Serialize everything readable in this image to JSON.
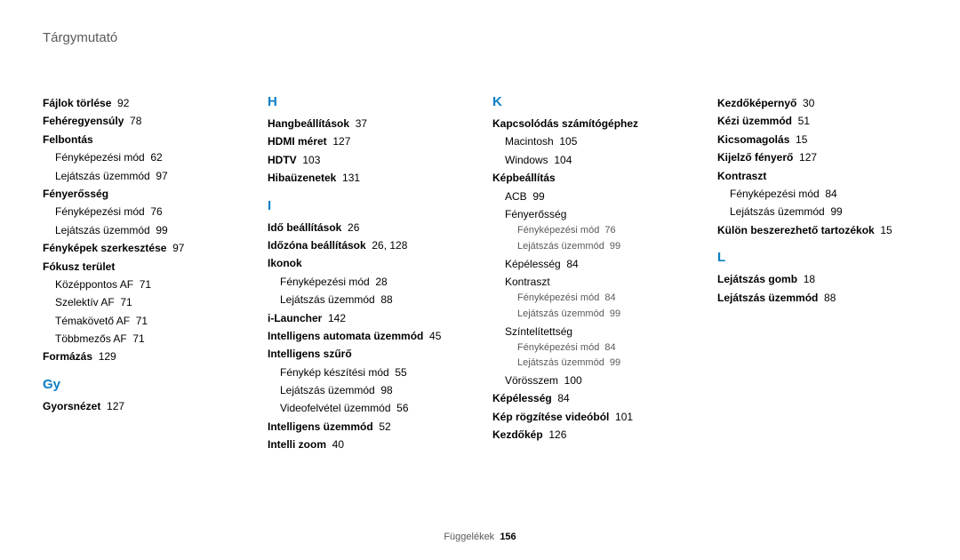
{
  "page": {
    "title": "Tárgymutató",
    "footer_label": "Függelékek",
    "footer_page": "156"
  },
  "columns": [
    {
      "blocks": [
        {
          "type": "bold",
          "text": "Fájlok törlése",
          "page": "92"
        },
        {
          "type": "bold",
          "text": "Fehéregyensúly",
          "page": "78"
        },
        {
          "type": "bold",
          "text": "Felbontás"
        },
        {
          "type": "sub1",
          "text": "Fényképezési mód",
          "page": "62"
        },
        {
          "type": "sub1",
          "text": "Lejátszás üzemmód",
          "page": "97"
        },
        {
          "type": "bold",
          "text": "Fényerősség"
        },
        {
          "type": "sub1",
          "text": "Fényképezési mód",
          "page": "76"
        },
        {
          "type": "sub1",
          "text": "Lejátszás üzemmód",
          "page": "99"
        },
        {
          "type": "bold",
          "text": "Fényképek szerkesztése",
          "page": "97"
        },
        {
          "type": "bold",
          "text": "Fókusz terület"
        },
        {
          "type": "sub1",
          "text": "Középpontos AF",
          "page": "71"
        },
        {
          "type": "sub1",
          "text": "Szelektív AF",
          "page": "71"
        },
        {
          "type": "sub1",
          "text": "Témakövető AF",
          "page": "71"
        },
        {
          "type": "sub1",
          "text": "Többmezős AF",
          "page": "71"
        },
        {
          "type": "bold",
          "text": "Formázás",
          "page": "129"
        },
        {
          "type": "letter",
          "text": "Gy"
        },
        {
          "type": "bold",
          "text": "Gyorsnézet",
          "page": "127"
        }
      ]
    },
    {
      "blocks": [
        {
          "type": "letter",
          "text": "H",
          "first": true
        },
        {
          "type": "bold",
          "text": "Hangbeállítások",
          "page": "37"
        },
        {
          "type": "bold",
          "text": "HDMI méret",
          "page": "127"
        },
        {
          "type": "bold",
          "text": "HDTV",
          "page": "103"
        },
        {
          "type": "bold",
          "text": "Hibaüzenetek",
          "page": "131"
        },
        {
          "type": "letter",
          "text": "I"
        },
        {
          "type": "bold",
          "text": "Idő beállítások",
          "page": "26"
        },
        {
          "type": "bold",
          "text": "Időzóna beállítások",
          "page": "26, 128"
        },
        {
          "type": "bold",
          "text": "Ikonok"
        },
        {
          "type": "sub1",
          "text": "Fényképezési mód",
          "page": "28"
        },
        {
          "type": "sub1",
          "text": "Lejátszás üzemmód",
          "page": "88"
        },
        {
          "type": "bold",
          "text": "i-Launcher",
          "page": "142"
        },
        {
          "type": "bold",
          "text": "Intelligens automata üzemmód",
          "page": "45"
        },
        {
          "type": "bold",
          "text": "Intelligens szűrő"
        },
        {
          "type": "sub1",
          "text": "Fénykép készítési mód",
          "page": "55"
        },
        {
          "type": "sub1",
          "text": "Lejátszás üzemmód",
          "page": "98"
        },
        {
          "type": "sub1",
          "text": "Videofelvétel üzemmód",
          "page": "56"
        },
        {
          "type": "bold",
          "text": "Intelligens üzemmód",
          "page": "52"
        },
        {
          "type": "bold",
          "text": "Intelli zoom",
          "page": "40"
        }
      ]
    },
    {
      "blocks": [
        {
          "type": "letter",
          "text": "K",
          "first": true
        },
        {
          "type": "bold",
          "text": "Kapcsolódás számítógéphez"
        },
        {
          "type": "sub1",
          "text": "Macintosh",
          "page": "105"
        },
        {
          "type": "sub1",
          "text": "Windows",
          "page": "104"
        },
        {
          "type": "bold",
          "text": "Képbeállítás"
        },
        {
          "type": "sub1",
          "text": "ACB",
          "page": "99"
        },
        {
          "type": "sub1",
          "text": "Fényerősség"
        },
        {
          "type": "sub2",
          "text": "Fényképezési mód",
          "page": "76"
        },
        {
          "type": "sub2",
          "text": "Lejátszás üzemmód",
          "page": "99"
        },
        {
          "type": "sub1",
          "text": "Képélesség",
          "page": "84"
        },
        {
          "type": "sub1",
          "text": "Kontraszt"
        },
        {
          "type": "sub2",
          "text": "Fényképezési mód",
          "page": "84"
        },
        {
          "type": "sub2",
          "text": "Lejátszás üzemmód",
          "page": "99"
        },
        {
          "type": "sub1",
          "text": "Színtelítettség"
        },
        {
          "type": "sub2",
          "text": "Fényképezési mód",
          "page": "84"
        },
        {
          "type": "sub2",
          "text": "Lejátszás üzemmód",
          "page": "99"
        },
        {
          "type": "sub1",
          "text": "Vörösszem",
          "page": "100"
        },
        {
          "type": "bold",
          "text": "Képélesség",
          "page": "84"
        },
        {
          "type": "bold",
          "text": "Kép rögzítése videóból",
          "page": "101"
        },
        {
          "type": "bold",
          "text": "Kezdőkép",
          "page": "126"
        }
      ]
    },
    {
      "blocks": [
        {
          "type": "bold",
          "text": "Kezdőképernyő",
          "page": "30"
        },
        {
          "type": "bold",
          "text": "Kézi üzemmód",
          "page": "51"
        },
        {
          "type": "bold",
          "text": "Kicsomagolás",
          "page": "15"
        },
        {
          "type": "bold",
          "text": "Kijelző fényerő",
          "page": "127"
        },
        {
          "type": "bold",
          "text": "Kontraszt"
        },
        {
          "type": "sub1",
          "text": "Fényképezési mód",
          "page": "84"
        },
        {
          "type": "sub1",
          "text": "Lejátszás üzemmód",
          "page": "99"
        },
        {
          "type": "bold",
          "text": "Külön beszerezhető tartozékok",
          "page": "15"
        },
        {
          "type": "letter",
          "text": "L"
        },
        {
          "type": "bold",
          "text": "Lejátszás gomb",
          "page": "18"
        },
        {
          "type": "bold",
          "text": "Lejátszás üzemmód",
          "page": "88"
        }
      ]
    }
  ]
}
